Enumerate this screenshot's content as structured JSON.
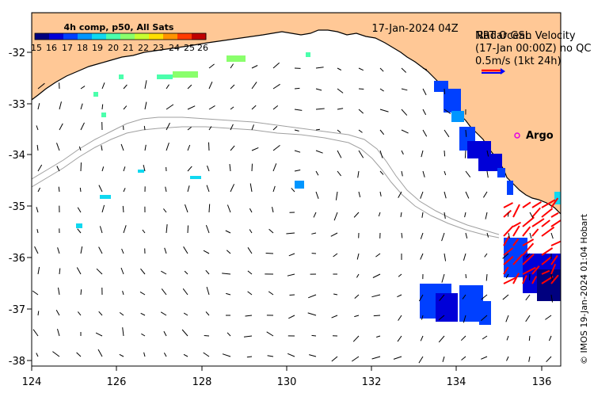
{
  "header": {
    "date_label": "17-Jan-2024 04Z"
  },
  "colorbar": {
    "title": "4h comp, p50, All Sats",
    "ticks": [
      "15",
      "16",
      "17",
      "18",
      "19",
      "20",
      "21",
      "22",
      "23",
      "24",
      "25",
      "26"
    ],
    "colors": [
      "#00007f",
      "#0000d8",
      "#0040ff",
      "#0096ff",
      "#10d8f0",
      "#4bffac",
      "#8aff6c",
      "#c7ff30",
      "#ffdf00",
      "#ff9300",
      "#ff3b00",
      "#c00000"
    ]
  },
  "overlay_text": {
    "line1": "NRT Ocean Velocity",
    "line1b": "Radar GSL",
    "line2": "(17-Jan 00:00Z) no QC",
    "line3": "0.5m/s (1kt 24h)"
  },
  "argo": {
    "label": "Argo",
    "color": "#e400e4"
  },
  "axes": {
    "x_ticks": [
      "124",
      "126",
      "128",
      "130",
      "132",
      "134",
      "136"
    ],
    "y_ticks": [
      "-32",
      "-33",
      "-34",
      "-35",
      "-36",
      "-37",
      "-38"
    ],
    "x_range": [
      124,
      136.5
    ],
    "y_range": [
      -38.1,
      -31.2
    ]
  },
  "colors": {
    "land": "#ffc896",
    "coast": "#000000",
    "isobath": "#a0a0a0",
    "radar_vectors": "#ff0000"
  },
  "credit": "© IMOS 19-Jan-2024 01:04 Hobart"
}
